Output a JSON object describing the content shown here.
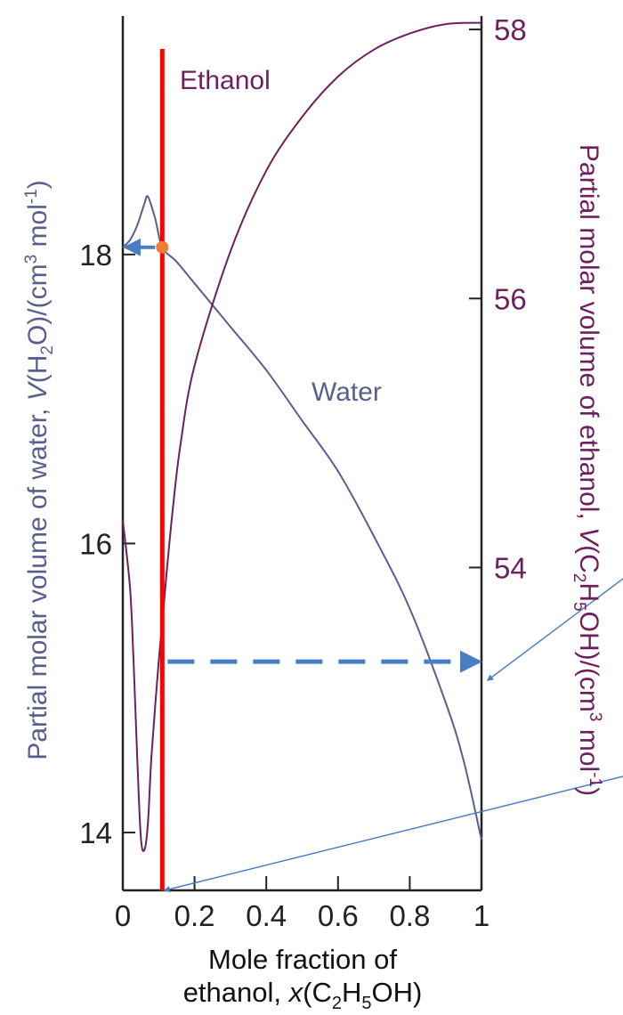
{
  "chart_data": {
    "type": "line",
    "xlabel_line1": "Mole fraction of",
    "xlabel_line2_prefix": "ethanol, ",
    "xlabel_var": "x",
    "xlabel_rest": "(C",
    "xlabel_sub1": "2",
    "xlabel_mid": "H",
    "xlabel_sub2": "5",
    "xlabel_end": "OH)",
    "x_ticks": [
      0,
      0.2,
      0.4,
      0.6,
      0.8,
      1
    ],
    "x_tick_labels": [
      "0",
      "0.2",
      "0.4",
      "0.6",
      "0.8",
      "1"
    ],
    "xlim": [
      0,
      1
    ],
    "left_axis": {
      "label_text": "Partial molar volume of water, ",
      "label_var": "V",
      "label_rest": "(H",
      "label_sub": "2",
      "label_end": "O)/(cm",
      "label_sup": "3",
      "label_tail": " mol",
      "label_sup2": "-1",
      "label_close": ")",
      "ticks": [
        14,
        16,
        18
      ],
      "tick_labels": [
        "14",
        "16",
        "18"
      ],
      "ylim": [
        13.6,
        19.65
      ]
    },
    "right_axis": {
      "label_text": "Partial molar volume of ethanol, ",
      "label_var": "V",
      "label_rest": "(C",
      "label_sub1": "2",
      "label_mid": "H",
      "label_sub2": "5",
      "label_end": "OH)/(cm",
      "label_sup": "3",
      "label_tail": " mol",
      "label_sup2": "-1",
      "label_close": ")",
      "ticks": [
        54,
        56,
        58
      ],
      "tick_labels": [
        "54",
        "56",
        "58"
      ],
      "ylim": [
        51.6,
        58.1
      ]
    },
    "series": [
      {
        "name": "Water",
        "axis": "left",
        "color": "#5a5e8e",
        "points": [
          [
            0,
            18.05
          ],
          [
            0.02,
            18.1
          ],
          [
            0.04,
            18.2
          ],
          [
            0.06,
            18.35
          ],
          [
            0.07,
            18.4
          ],
          [
            0.09,
            18.25
          ],
          [
            0.11,
            18.05
          ],
          [
            0.15,
            17.95
          ],
          [
            0.2,
            17.8
          ],
          [
            0.3,
            17.5
          ],
          [
            0.4,
            17.2
          ],
          [
            0.5,
            16.85
          ],
          [
            0.6,
            16.5
          ],
          [
            0.7,
            16.05
          ],
          [
            0.8,
            15.55
          ],
          [
            0.9,
            14.9
          ],
          [
            0.95,
            14.5
          ],
          [
            1.0,
            13.95
          ]
        ]
      },
      {
        "name": "Ethanol",
        "axis": "right",
        "color": "#6e1f5e",
        "points": [
          [
            0,
            54.35
          ],
          [
            0.02,
            53.85
          ],
          [
            0.03,
            53.3
          ],
          [
            0.04,
            52.6
          ],
          [
            0.05,
            52.0
          ],
          [
            0.06,
            51.9
          ],
          [
            0.07,
            52.1
          ],
          [
            0.08,
            52.6
          ],
          [
            0.1,
            53.3
          ],
          [
            0.12,
            53.9
          ],
          [
            0.14,
            54.45
          ],
          [
            0.16,
            54.9
          ],
          [
            0.2,
            55.5
          ],
          [
            0.3,
            56.35
          ],
          [
            0.4,
            56.95
          ],
          [
            0.5,
            57.35
          ],
          [
            0.6,
            57.65
          ],
          [
            0.7,
            57.85
          ],
          [
            0.8,
            57.97
          ],
          [
            0.9,
            58.04
          ],
          [
            1.0,
            58.05
          ]
        ]
      }
    ],
    "annotations": {
      "vertical_line_x": 0.11,
      "vertical_line_color": "#ff0000",
      "marker_x": 0.11,
      "marker_y": 18.05,
      "marker_color": "#ed7d31",
      "arrow_color": "#4a7ec4",
      "solid_arrow_to_left_axis_y": 18.05,
      "dashed_arrow_to_right_axis_y": 53.3,
      "pointer_line_color": "#4a7ec4"
    },
    "colors": {
      "water": "#5a5e8e",
      "ethanol": "#6e1f5e",
      "left_axis_label": "#5a5e8e",
      "right_axis_label": "#6e1f5e"
    }
  }
}
